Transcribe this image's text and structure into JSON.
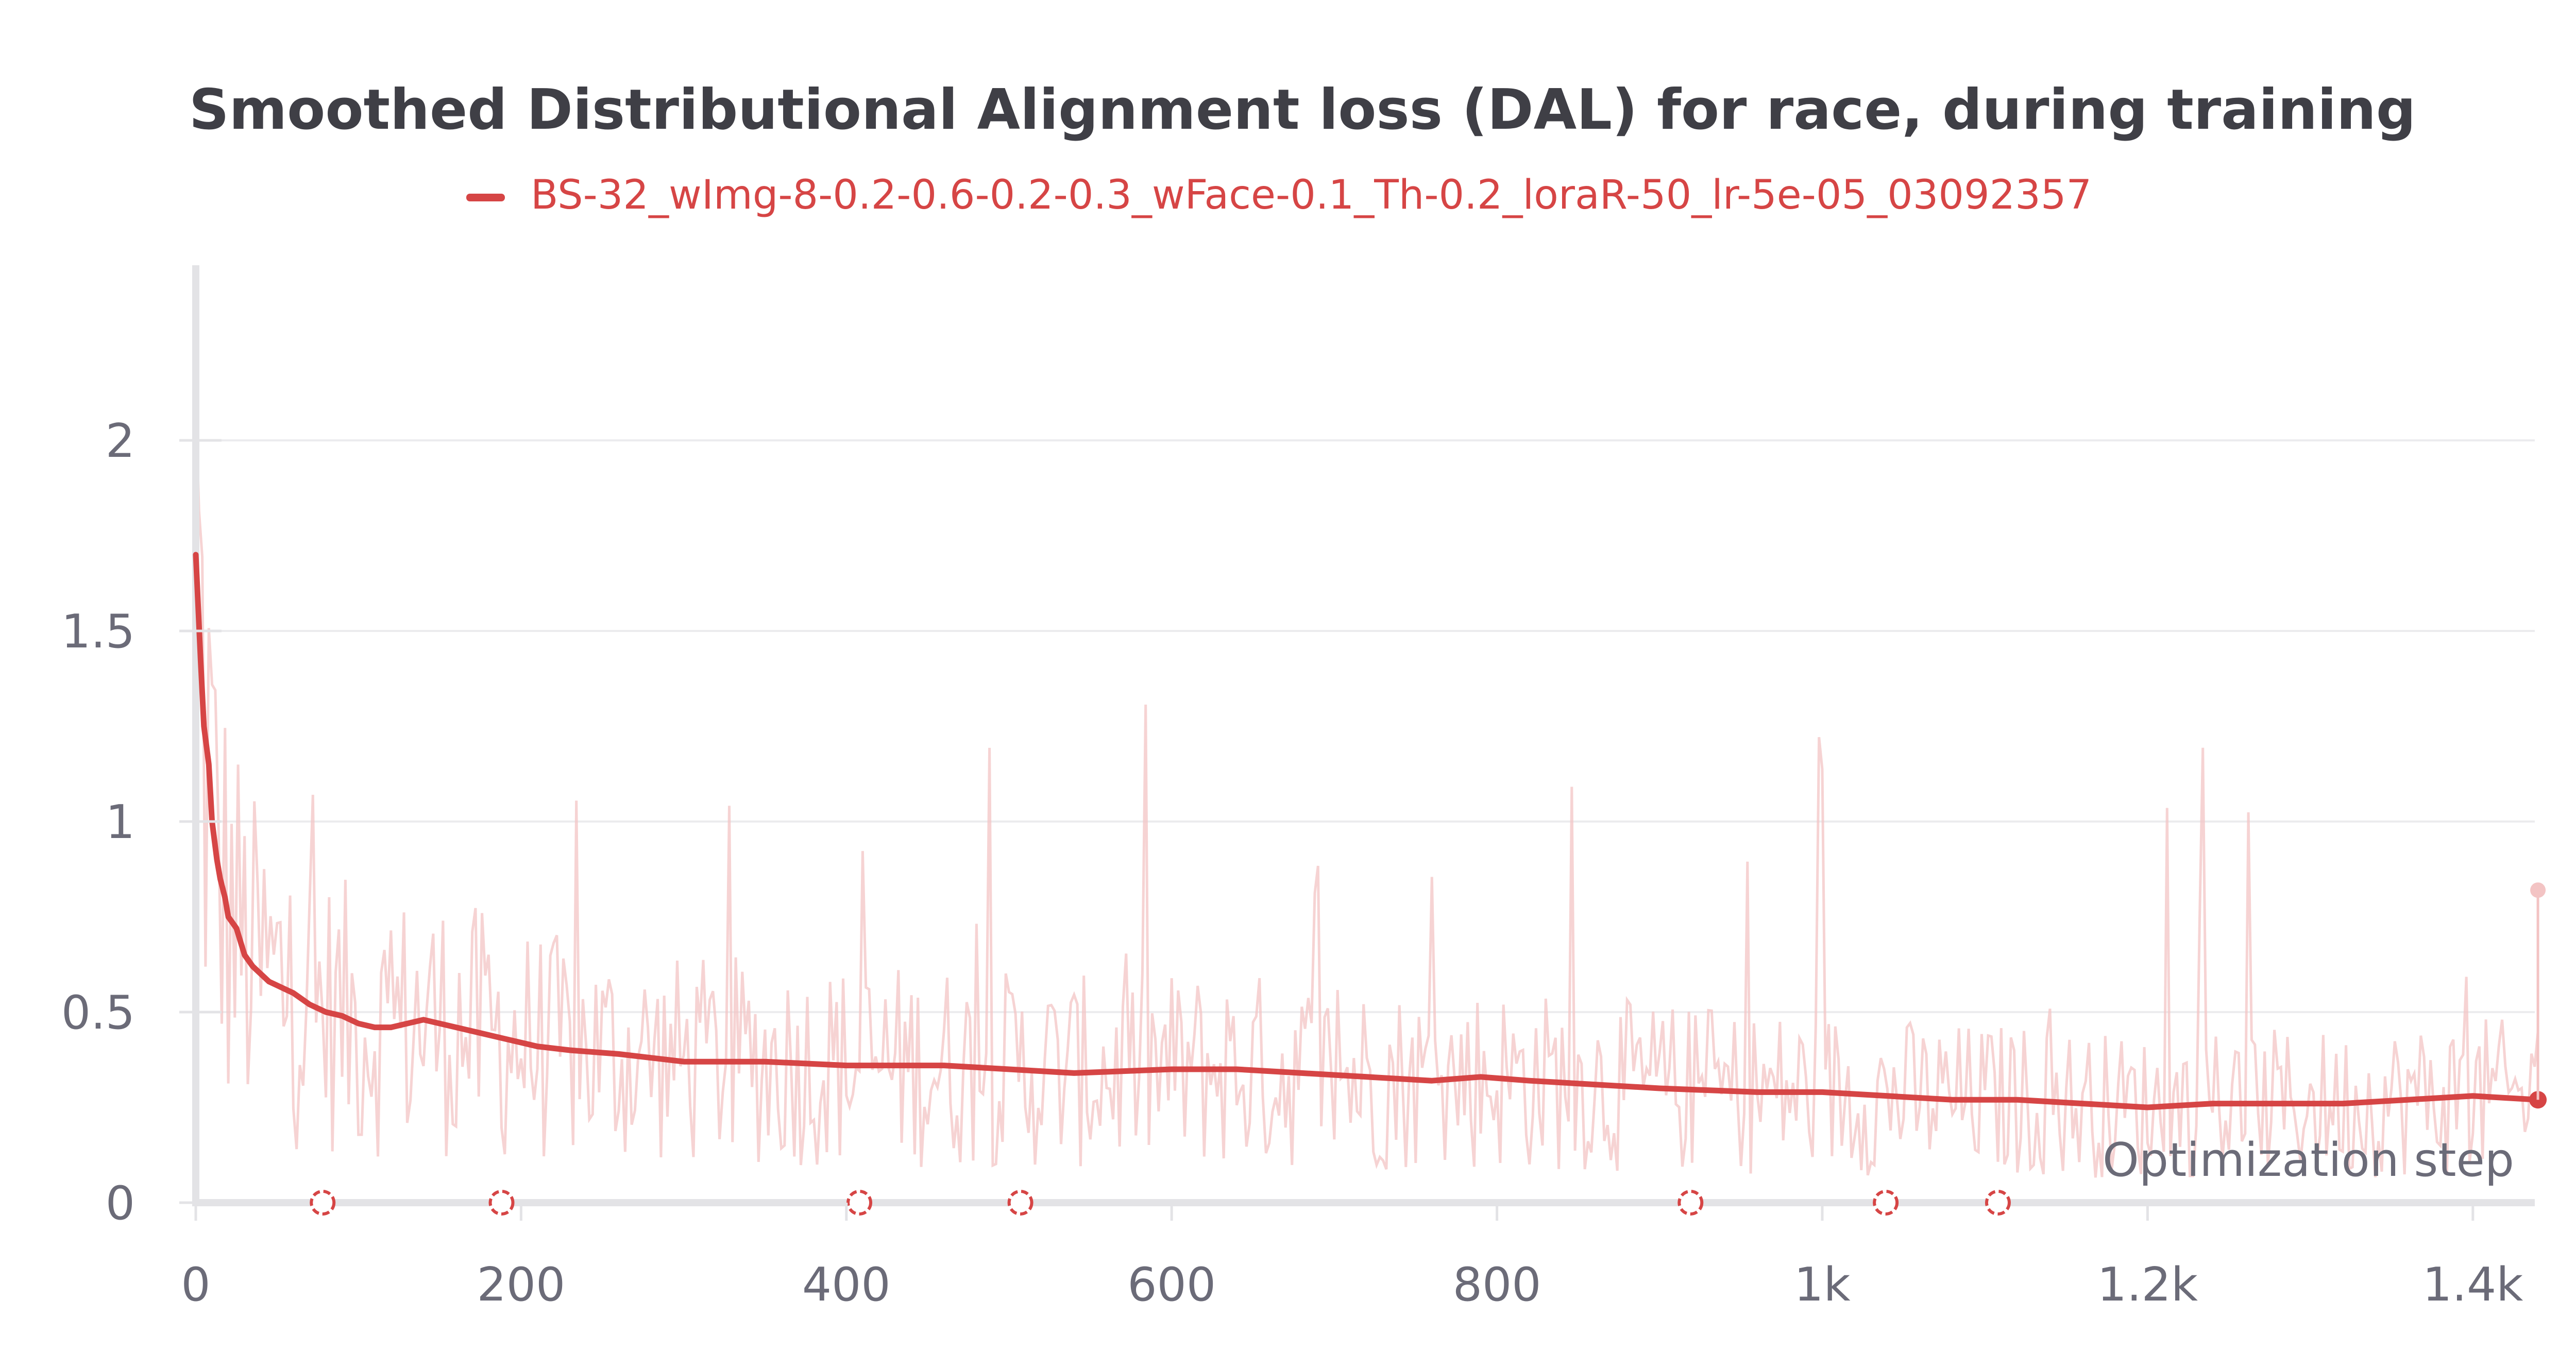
{
  "chart_data": {
    "type": "line",
    "title": "Smoothed Distributional Alignment loss (DAL) for race, during training",
    "xlabel": "Optimization step",
    "ylabel": "",
    "xlim": [
      0,
      1440
    ],
    "ylim": [
      0,
      2.5
    ],
    "x_ticks": [
      0,
      200,
      400,
      600,
      800,
      1000,
      1200,
      1400
    ],
    "x_tick_labels": [
      "0",
      "200",
      "400",
      "600",
      "800",
      "1k",
      "1.2k",
      "1.4k"
    ],
    "y_ticks": [
      0,
      0.5,
      1,
      1.5,
      2
    ],
    "y_tick_labels": [
      "0",
      "0.5",
      "1",
      "1.5",
      "2"
    ],
    "grid": true,
    "legend_position": "top-center",
    "colors": {
      "series": "#d64545",
      "raw": "#f3c4c4",
      "axis": "#e3e3e6",
      "grid": "#ececee",
      "title": "#3f3f46",
      "ticks": "#6b6b78"
    },
    "series": [
      {
        "name": "BS-32_wImg-8-0.2-0.6-0.2-0.3_wFace-0.1_Th-0.2_loraR-50_lr-5e-05_03092357",
        "x": [
          0,
          3,
          5,
          8,
          10,
          13,
          15,
          18,
          20,
          25,
          30,
          35,
          40,
          45,
          50,
          55,
          60,
          70,
          80,
          90,
          100,
          110,
          120,
          130,
          140,
          150,
          170,
          190,
          210,
          230,
          260,
          300,
          350,
          400,
          420,
          460,
          500,
          540,
          600,
          640,
          680,
          720,
          760,
          790,
          820,
          860,
          900,
          960,
          1000,
          1040,
          1080,
          1120,
          1160,
          1200,
          1240,
          1280,
          1320,
          1360,
          1400,
          1440
        ],
        "y": [
          1.7,
          1.42,
          1.25,
          1.15,
          1.0,
          0.9,
          0.85,
          0.8,
          0.75,
          0.72,
          0.65,
          0.62,
          0.6,
          0.58,
          0.57,
          0.56,
          0.55,
          0.52,
          0.5,
          0.49,
          0.47,
          0.46,
          0.46,
          0.47,
          0.48,
          0.47,
          0.45,
          0.43,
          0.41,
          0.4,
          0.39,
          0.37,
          0.37,
          0.36,
          0.36,
          0.36,
          0.35,
          0.34,
          0.35,
          0.35,
          0.34,
          0.33,
          0.32,
          0.33,
          0.32,
          0.31,
          0.3,
          0.29,
          0.29,
          0.28,
          0.27,
          0.27,
          0.26,
          0.25,
          0.26,
          0.26,
          0.26,
          0.27,
          0.28,
          0.27
        ],
        "last_raw_value": 0.82
      }
    ],
    "run_markers_x": [
      78,
      188,
      408,
      507,
      919,
      1039,
      1108
    ]
  }
}
